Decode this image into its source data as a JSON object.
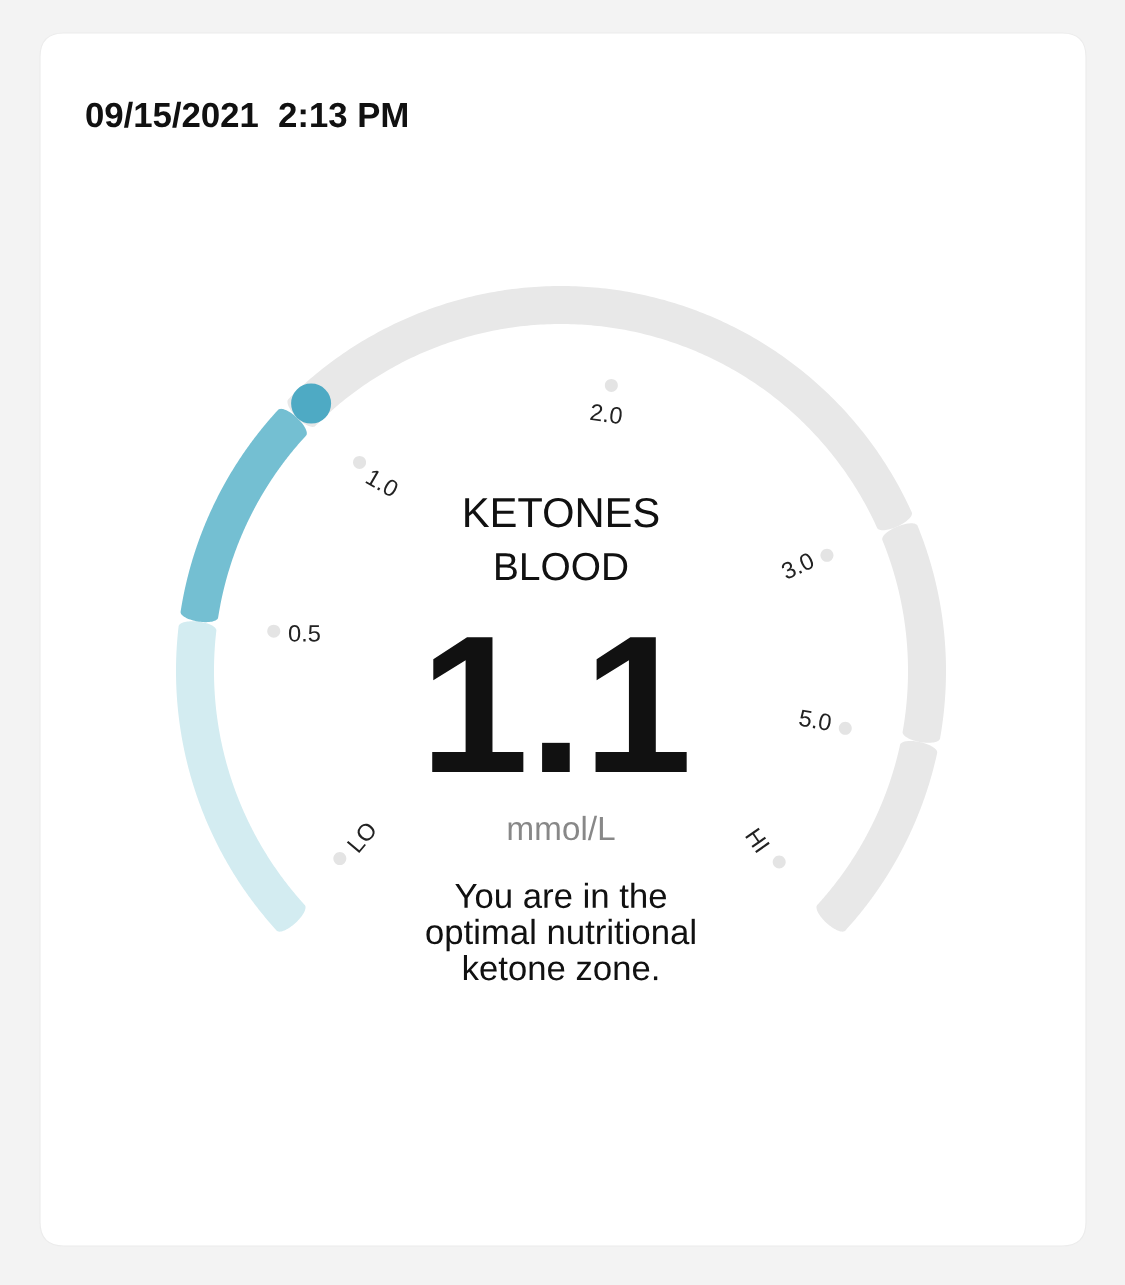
{
  "chart_data": {
    "type": "donut",
    "title": "KETONES",
    "subtitle": "BLOOD",
    "categories": [
      null,
      null,
      null,
      null,
      null
    ],
    "values": [
      19.2,
      13.5,
      42.3,
      12.9,
      12.1
    ],
    "colors": [
      "#d3ecf1",
      "#74bfd2",
      "#e8e8e8",
      "#e8e8e8",
      "#e8e8e8"
    ],
    "annotations": [
      "09/15/2021  2:13 PM",
      "LO",
      "0.5",
      "1.0",
      "2.0",
      "3.0",
      "5.0",
      "HI",
      "1.1",
      "mmol/L",
      "You are in the\noptimal nutritional\nketone zone."
    ]
  }
}
